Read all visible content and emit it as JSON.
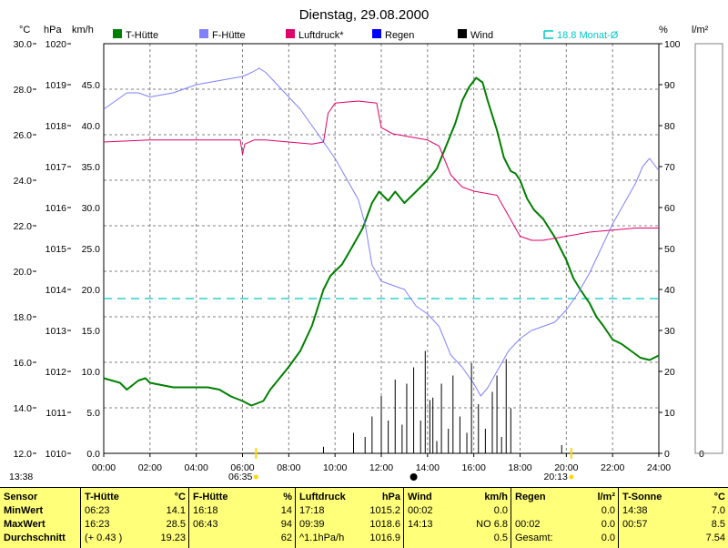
{
  "title": "Dienstag, 29.08.2000",
  "corner_time": "13:38",
  "axis_units": {
    "temp": "°C",
    "pressure": "hPa",
    "wind": "km/h",
    "humidity": "%",
    "rain": "l/m²"
  },
  "legend": [
    {
      "name": "T-Hütte",
      "color": "#008000"
    },
    {
      "name": "F-Hütte",
      "color": "#8080ff"
    },
    {
      "name": "Luftdruck*",
      "color": "#e0006a"
    },
    {
      "name": "Regen",
      "color": "#0000ff"
    },
    {
      "name": "Wind",
      "color": "#000000"
    },
    {
      "name": "18.8 Monat-Ø",
      "color": "#00c8c8"
    }
  ],
  "sun": {
    "sunrise": "06:35",
    "sunset": "20:13"
  },
  "colors": {
    "background": "#ffffff",
    "grid": "#808080",
    "stats_bg": "#ffff7a",
    "sun_marker": "#ffd700"
  },
  "chart_data": {
    "type": "line",
    "title": "Dienstag, 29.08.2000",
    "x_unit": "hours",
    "x_ticks": [
      "00:00",
      "02:00",
      "04:00",
      "06:00",
      "08:00",
      "10:00",
      "12:00",
      "14:00",
      "16:00",
      "18:00",
      "20:00",
      "22:00",
      "24:00"
    ],
    "xlim": [
      0,
      24
    ],
    "axes": {
      "temp": {
        "ylim": [
          12,
          30
        ],
        "ticks": [
          "12.0",
          "14.0",
          "16.0",
          "18.0",
          "20.0",
          "22.0",
          "24.0",
          "26.0",
          "28.0",
          "30.0"
        ]
      },
      "pressure": {
        "ylim": [
          1010,
          1020
        ],
        "ticks": [
          "1010",
          "1011",
          "1012",
          "1013",
          "1014",
          "1015",
          "1016",
          "1017",
          "1018",
          "1019",
          "1020"
        ]
      },
      "wind": {
        "ylim": [
          0,
          50
        ],
        "ticks": [
          "0.0",
          "5.0",
          "10.0",
          "15.0",
          "20.0",
          "25.0",
          "30.0",
          "35.0",
          "40.0",
          "45.0"
        ]
      },
      "humidity": {
        "ylim": [
          0,
          100
        ],
        "ticks": [
          "0",
          "10",
          "20",
          "30",
          "40",
          "50",
          "60",
          "70",
          "80",
          "90",
          "100"
        ]
      },
      "rain": {
        "ylim": [
          0,
          100
        ],
        "ticks": [
          "0"
        ]
      }
    },
    "grid": true,
    "reference_line": {
      "name": "18.8 Monat-Ø",
      "axis": "temp",
      "value": 18.8
    },
    "series": [
      {
        "name": "T-Hütte",
        "axis": "temp",
        "color": "#008000",
        "x": [
          0,
          0.7,
          1,
          1.5,
          1.8,
          2,
          2.5,
          3,
          3.5,
          4,
          4.5,
          5,
          5.5,
          6,
          6.38,
          6.9,
          7.2,
          7.6,
          8,
          8.5,
          9,
          9.5,
          9.8,
          10.3,
          10.7,
          11.2,
          11.6,
          11.9,
          12.3,
          12.6,
          13,
          13.5,
          14,
          14.4,
          14.8,
          15.2,
          15.5,
          15.8,
          16.1,
          16.38,
          16.6,
          17,
          17.3,
          17.6,
          17.8,
          18,
          18.3,
          18.6,
          19,
          19.5,
          20,
          20.3,
          20.6,
          21,
          21.3,
          21.6,
          22,
          22.4,
          22.8,
          23.2,
          23.6,
          24
        ],
        "y": [
          15.3,
          15.1,
          14.8,
          15.2,
          15.3,
          15.1,
          15.0,
          14.9,
          14.9,
          14.9,
          14.9,
          14.8,
          14.5,
          14.3,
          14.1,
          14.3,
          14.8,
          15.3,
          15.8,
          16.5,
          17.6,
          19.2,
          19.8,
          20.3,
          21.0,
          21.9,
          23.0,
          23.5,
          23.1,
          23.5,
          23.0,
          23.5,
          24.0,
          24.5,
          25.5,
          26.5,
          27.5,
          28.1,
          28.5,
          28.3,
          27.5,
          26.2,
          25.0,
          24.4,
          24.3,
          24.0,
          23.2,
          22.7,
          22.3,
          21.5,
          20.5,
          19.7,
          19.2,
          18.6,
          18.0,
          17.6,
          17.0,
          16.8,
          16.5,
          16.2,
          16.1,
          16.3
        ]
      },
      {
        "name": "F-Hütte",
        "axis": "humidity",
        "color": "#8080ff",
        "x": [
          0,
          0.5,
          1,
          1.5,
          2,
          3,
          4,
          5,
          6,
          6.4,
          6.72,
          7,
          7.5,
          8,
          8.5,
          9,
          9.5,
          10,
          10.5,
          11,
          11.3,
          11.6,
          12,
          12.5,
          13,
          13.5,
          14,
          14.5,
          15,
          15.5,
          16,
          16.3,
          16.6,
          17,
          17.5,
          18,
          18.5,
          19,
          19.5,
          20,
          20.5,
          21,
          21.5,
          22,
          22.5,
          23,
          23.3,
          23.6,
          24
        ],
        "y": [
          84,
          86,
          88,
          88,
          87,
          88,
          90,
          91,
          92,
          93,
          94,
          93,
          90,
          87,
          84,
          80,
          76,
          72,
          67,
          62,
          56,
          46,
          42,
          41,
          40,
          36,
          34,
          31,
          24,
          21,
          17,
          14,
          16,
          20,
          25,
          28,
          30,
          31,
          32,
          35,
          39,
          44,
          50,
          56,
          61,
          66,
          70,
          72,
          69
        ]
      },
      {
        "name": "Luftdruck*",
        "axis": "pressure",
        "color": "#e0006a",
        "x": [
          0,
          2,
          4,
          5.5,
          5.9,
          6.0,
          6.1,
          6.5,
          7,
          8,
          9,
          9.5,
          9.7,
          10,
          11,
          11.8,
          12,
          12.5,
          13,
          13.5,
          14,
          14.5,
          15,
          15.5,
          16,
          17,
          17.5,
          18,
          18.5,
          19,
          20,
          21,
          22,
          23,
          24
        ],
        "y": [
          1017.6,
          1017.65,
          1017.65,
          1017.65,
          1017.65,
          1017.3,
          1017.55,
          1017.65,
          1017.65,
          1017.6,
          1017.55,
          1017.6,
          1018.3,
          1018.55,
          1018.6,
          1018.55,
          1017.95,
          1017.8,
          1017.75,
          1017.7,
          1017.65,
          1017.5,
          1016.8,
          1016.5,
          1016.4,
          1016.3,
          1015.8,
          1015.3,
          1015.2,
          1015.2,
          1015.3,
          1015.4,
          1015.45,
          1015.5,
          1015.5
        ]
      },
      {
        "name": "Wind",
        "axis": "wind",
        "color": "#000000",
        "x": [
          9.5,
          10.8,
          11.0,
          11.3,
          11.6,
          12.0,
          12.3,
          12.6,
          12.9,
          13.1,
          13.4,
          13.7,
          13.9,
          14.1,
          14.23,
          14.4,
          14.6,
          14.9,
          15.1,
          15.4,
          15.7,
          15.9,
          16.2,
          16.5,
          16.8,
          17.0,
          17.2,
          17.4,
          17.6,
          19.8
        ],
        "y": [
          0.8,
          2.5,
          0.0,
          2.0,
          4.5,
          7.0,
          4.0,
          9.0,
          3.5,
          8.5,
          10.5,
          4.0,
          12.5,
          6.5,
          6.8,
          1.5,
          8.5,
          3.0,
          9.5,
          4.5,
          2.5,
          11.0,
          6.0,
          3.0,
          7.5,
          9.5,
          2.0,
          11.5,
          5.5,
          1.0
        ]
      }
    ]
  },
  "stats": {
    "row_labels": [
      "Sensor",
      "MinWert",
      "MaxWert",
      "Durchschnitt"
    ],
    "columns": [
      {
        "name": "T-Hütte",
        "unit": "°C",
        "min_time": "06:23",
        "min": "14.1",
        "max_time": "16:23",
        "max": "28.5",
        "avg_note": "(+ 0.43 )",
        "avg": "19.23"
      },
      {
        "name": "F-Hütte",
        "unit": "%",
        "min_time": "16:18",
        "min": "14",
        "max_time": "06:43",
        "max": "94",
        "avg_note": "",
        "avg": "62"
      },
      {
        "name": "Luftdruck",
        "unit": "hPa",
        "min_time": "17:18",
        "min": "1015.2",
        "max_time": "09:39",
        "max": "1018.6",
        "avg_note": "^1.1hPa/h",
        "avg": "1016.9"
      },
      {
        "name": "Wind",
        "unit": "km/h",
        "min_time": "00:02",
        "min": "0.0",
        "max_time": "14:13",
        "max": "NO 6.8",
        "avg_note": "",
        "avg": "0.5"
      },
      {
        "name": "Regen",
        "unit": "l/m²",
        "min_time": "",
        "min": "0.0",
        "max_time": "00:02",
        "max": "0.0",
        "avg_note": "Gesamt:",
        "avg": "0.0"
      },
      {
        "name": "T-Sonne",
        "unit": "°C",
        "min_time": "14:38",
        "min": "7.0",
        "max_time": "00:57",
        "max": "8.5",
        "avg_note": "",
        "avg": "7.54"
      }
    ]
  }
}
